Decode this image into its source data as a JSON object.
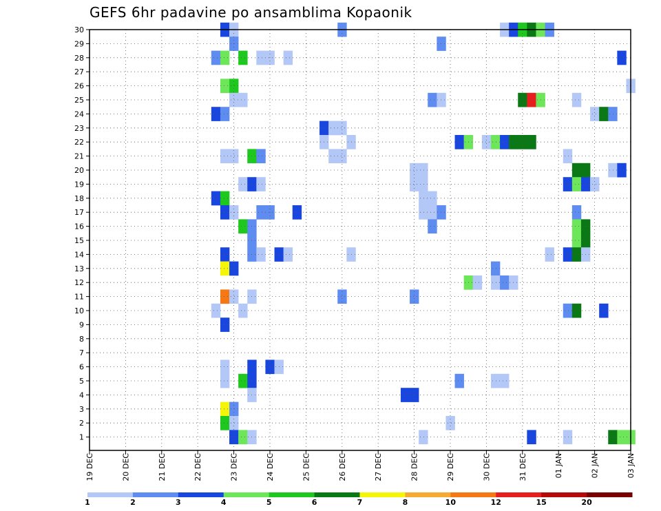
{
  "chart_data": {
    "type": "heatmap",
    "title": "GEFS 6hr padavine po ansamblima Kopaonik",
    "xlabel": "",
    "ylabel": "",
    "x_tick_labels": [
      "19 DEC",
      "20 DEC",
      "21 DEC",
      "22 DEC",
      "23 DEC",
      "24 DEC",
      "25 DEC",
      "26 DEC",
      "27 DEC",
      "28 DEC",
      "29 DEC",
      "30 DEC",
      "31 DEC",
      "01 JAN",
      "02 JAN",
      "03 JAN"
    ],
    "y_tick_labels": [
      "1",
      "2",
      "3",
      "4",
      "5",
      "6",
      "7",
      "8",
      "9",
      "10",
      "11",
      "12",
      "13",
      "14",
      "15",
      "16",
      "17",
      "18",
      "19",
      "20",
      "21",
      "22",
      "23",
      "24",
      "25",
      "26",
      "27",
      "28",
      "29",
      "30"
    ],
    "x_range_6h_steps": [
      0,
      60
    ],
    "y_range_members": [
      1,
      30
    ],
    "grid": true,
    "legend_position": "bottom",
    "colorbar_labels": [
      "1",
      "2",
      "3",
      "4",
      "5",
      "6",
      "7",
      "8",
      "10",
      "12",
      "15",
      "20"
    ],
    "colorbar_colors": [
      "#b4c8f8",
      "#5f8cf0",
      "#1a46e0",
      "#6ee65a",
      "#1ec81e",
      "#0a7814",
      "#f5f50a",
      "#f5aa32",
      "#f57814",
      "#e61e1e",
      "#b40a0a",
      "#780000"
    ],
    "cells": [
      [
        15,
        30,
        3
      ],
      [
        16,
        30,
        1
      ],
      [
        28,
        30,
        2
      ],
      [
        46,
        30,
        1
      ],
      [
        47,
        30,
        3
      ],
      [
        48,
        30,
        5
      ],
      [
        49,
        30,
        6
      ],
      [
        50,
        30,
        4
      ],
      [
        51,
        30,
        2
      ],
      [
        16,
        29,
        2
      ],
      [
        39,
        29,
        2
      ],
      [
        14,
        28,
        2
      ],
      [
        15,
        28,
        4
      ],
      [
        17,
        28,
        5
      ],
      [
        19,
        28,
        1
      ],
      [
        20,
        28,
        1
      ],
      [
        22,
        28,
        1
      ],
      [
        59,
        28,
        3
      ],
      [
        15,
        26,
        4
      ],
      [
        16,
        26,
        5
      ],
      [
        60,
        26,
        1
      ],
      [
        16,
        25,
        1
      ],
      [
        17,
        25,
        1
      ],
      [
        38,
        25,
        2
      ],
      [
        39,
        25,
        1
      ],
      [
        48,
        25,
        6
      ],
      [
        49,
        25,
        10
      ],
      [
        50,
        25,
        4
      ],
      [
        54,
        25,
        1
      ],
      [
        14,
        24,
        3
      ],
      [
        15,
        24,
        2
      ],
      [
        56,
        24,
        1
      ],
      [
        57,
        24,
        6
      ],
      [
        58,
        24,
        2
      ],
      [
        26,
        23,
        3
      ],
      [
        27,
        23,
        1
      ],
      [
        28,
        23,
        1
      ],
      [
        26,
        22,
        1
      ],
      [
        29,
        22,
        1
      ],
      [
        41,
        22,
        3
      ],
      [
        42,
        22,
        4
      ],
      [
        44,
        22,
        1
      ],
      [
        45,
        22,
        4
      ],
      [
        46,
        22,
        3
      ],
      [
        47,
        22,
        6
      ],
      [
        48,
        22,
        6
      ],
      [
        49,
        22,
        6
      ],
      [
        15,
        21,
        1
      ],
      [
        16,
        21,
        1
      ],
      [
        18,
        21,
        5
      ],
      [
        19,
        21,
        2
      ],
      [
        27,
        21,
        1
      ],
      [
        28,
        21,
        1
      ],
      [
        53,
        21,
        1
      ],
      [
        36,
        20,
        1
      ],
      [
        37,
        20,
        1
      ],
      [
        54,
        20,
        6
      ],
      [
        55,
        20,
        6
      ],
      [
        58,
        20,
        1
      ],
      [
        59,
        20,
        3
      ],
      [
        17,
        19,
        1
      ],
      [
        18,
        19,
        3
      ],
      [
        19,
        19,
        1
      ],
      [
        36,
        19,
        1
      ],
      [
        37,
        19,
        1
      ],
      [
        53,
        19,
        3
      ],
      [
        54,
        19,
        4
      ],
      [
        55,
        19,
        3
      ],
      [
        56,
        19,
        1
      ],
      [
        14,
        18,
        3
      ],
      [
        15,
        18,
        5
      ],
      [
        37,
        18,
        1
      ],
      [
        38,
        18,
        1
      ],
      [
        15,
        17,
        3
      ],
      [
        16,
        17,
        1
      ],
      [
        19,
        17,
        2
      ],
      [
        20,
        17,
        2
      ],
      [
        23,
        17,
        3
      ],
      [
        37,
        17,
        1
      ],
      [
        38,
        17,
        1
      ],
      [
        39,
        17,
        2
      ],
      [
        54,
        17,
        2
      ],
      [
        17,
        16,
        5
      ],
      [
        18,
        16,
        2
      ],
      [
        38,
        16,
        2
      ],
      [
        54,
        16,
        4
      ],
      [
        55,
        16,
        6
      ],
      [
        18,
        15,
        2
      ],
      [
        54,
        15,
        4
      ],
      [
        55,
        15,
        6
      ],
      [
        15,
        14,
        3
      ],
      [
        18,
        14,
        2
      ],
      [
        19,
        14,
        1
      ],
      [
        21,
        14,
        3
      ],
      [
        22,
        14,
        1
      ],
      [
        29,
        14,
        1
      ],
      [
        51,
        14,
        1
      ],
      [
        53,
        14,
        3
      ],
      [
        54,
        14,
        6
      ],
      [
        55,
        14,
        1
      ],
      [
        15,
        13,
        7
      ],
      [
        16,
        13,
        3
      ],
      [
        45,
        13,
        2
      ],
      [
        42,
        12,
        4
      ],
      [
        43,
        12,
        1
      ],
      [
        45,
        12,
        1
      ],
      [
        46,
        12,
        2
      ],
      [
        47,
        12,
        1
      ],
      [
        15,
        11,
        9
      ],
      [
        16,
        11,
        1
      ],
      [
        18,
        11,
        1
      ],
      [
        28,
        11,
        2
      ],
      [
        36,
        11,
        2
      ],
      [
        14,
        10,
        1
      ],
      [
        17,
        10,
        1
      ],
      [
        53,
        10,
        2
      ],
      [
        54,
        10,
        6
      ],
      [
        57,
        10,
        3
      ],
      [
        15,
        9,
        3
      ],
      [
        15,
        6,
        1
      ],
      [
        18,
        6,
        3
      ],
      [
        20,
        6,
        3
      ],
      [
        21,
        6,
        1
      ],
      [
        15,
        5,
        1
      ],
      [
        17,
        5,
        5
      ],
      [
        18,
        5,
        3
      ],
      [
        41,
        5,
        2
      ],
      [
        45,
        5,
        1
      ],
      [
        46,
        5,
        1
      ],
      [
        18,
        4,
        1
      ],
      [
        35,
        4,
        3
      ],
      [
        36,
        4,
        3
      ],
      [
        15,
        3,
        7
      ],
      [
        16,
        3,
        2
      ],
      [
        15,
        2,
        5
      ],
      [
        16,
        2,
        1
      ],
      [
        40,
        2,
        1
      ],
      [
        16,
        1,
        3
      ],
      [
        17,
        1,
        4
      ],
      [
        18,
        1,
        1
      ],
      [
        37,
        1,
        1
      ],
      [
        49,
        1,
        3
      ],
      [
        53,
        1,
        1
      ],
      [
        58,
        1,
        6
      ],
      [
        59,
        1,
        4
      ],
      [
        60,
        1,
        4
      ]
    ]
  }
}
